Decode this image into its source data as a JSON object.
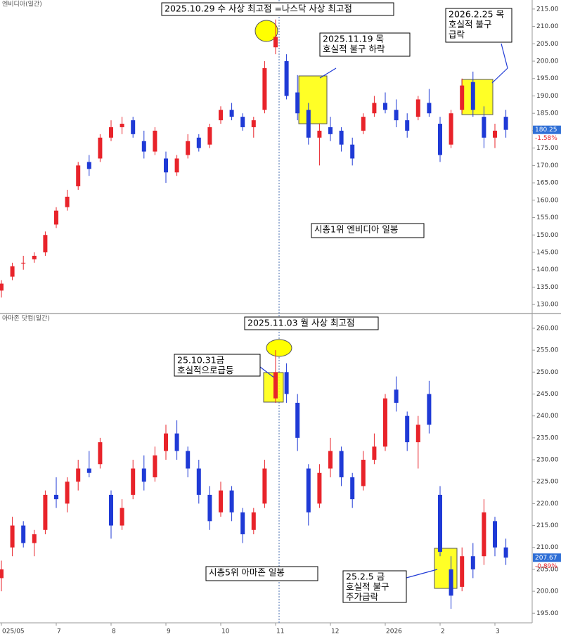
{
  "chart_data": [
    {
      "type": "candlestick",
      "title": "엔비디아(일간)",
      "up_color": "#e8232a",
      "down_color": "#1f3ad6",
      "categories": [
        null,
        null,
        null,
        null,
        null,
        null,
        null,
        null,
        null,
        null,
        null,
        null,
        null,
        null,
        null,
        null,
        null,
        null,
        null,
        null,
        null,
        null,
        null,
        null,
        null,
        null,
        null,
        null,
        null,
        null,
        null,
        null,
        null,
        null,
        null,
        null,
        null,
        null,
        null,
        null,
        null,
        null,
        null,
        null,
        null,
        null,
        null
      ],
      "open": [
        134,
        138,
        142,
        143,
        145,
        153,
        158,
        164,
        171,
        172,
        178,
        181,
        183,
        177,
        174,
        172,
        168,
        173,
        178,
        176,
        183,
        186,
        184,
        181,
        186,
        204,
        200,
        191,
        186,
        178,
        181,
        180,
        176,
        180,
        185,
        188,
        186,
        183,
        184,
        188,
        182,
        176,
        186,
        194,
        184,
        178,
        184
      ],
      "high": [
        137,
        142,
        144,
        145,
        151,
        158,
        163,
        171,
        173,
        179,
        183,
        184,
        184,
        180,
        181,
        174,
        173,
        179,
        179,
        182,
        187,
        188,
        185,
        184,
        200,
        212,
        202,
        196,
        188,
        182,
        184,
        181,
        178,
        185,
        190,
        191,
        189,
        185,
        190,
        192,
        184,
        186,
        195,
        197,
        187,
        182,
        186
      ],
      "low": [
        132,
        137,
        140,
        142,
        144,
        152,
        157,
        163,
        167,
        171,
        177,
        179,
        178,
        172,
        173,
        165,
        167,
        172,
        174,
        175,
        182,
        183,
        180,
        178,
        185,
        202,
        189,
        183,
        176,
        170,
        177,
        174,
        170,
        179,
        184,
        185,
        181,
        178,
        183,
        184,
        171,
        175,
        185,
        184,
        175,
        175,
        178
      ],
      "close": [
        136,
        141,
        142,
        144,
        150,
        157,
        161,
        170,
        169,
        178,
        181,
        182,
        179,
        174,
        180,
        168,
        172,
        177,
        175,
        181,
        186,
        184,
        181,
        183,
        198,
        207,
        190,
        185,
        178,
        180,
        179,
        176,
        172,
        184,
        188,
        186,
        183,
        180,
        189,
        185,
        173,
        185,
        193,
        186,
        178,
        180,
        180.25
      ],
      "change_label": "-1.58%",
      "ylim": [
        127.4,
        217.6
      ],
      "yticks": [
        {
          "value": 130,
          "label": "130.00"
        },
        {
          "value": 135,
          "label": "135.00"
        },
        {
          "value": 140,
          "label": "140.00"
        },
        {
          "value": 145,
          "label": "145.00"
        },
        {
          "value": 150,
          "label": "150.00"
        },
        {
          "value": 155,
          "label": "155.00"
        },
        {
          "value": 160,
          "label": "160.00"
        },
        {
          "value": 165,
          "label": "165.00"
        },
        {
          "value": 170,
          "label": "170.00"
        },
        {
          "value": 175,
          "label": "175.00"
        },
        {
          "value": 180,
          "label": "180.00"
        },
        {
          "value": 185,
          "label": "185.00"
        },
        {
          "value": 190,
          "label": "190.00"
        },
        {
          "value": 195,
          "label": "195.00"
        },
        {
          "value": 200,
          "label": "200.00"
        },
        {
          "value": 205,
          "label": "205.00"
        },
        {
          "value": 210,
          "label": "210.00"
        },
        {
          "value": 215,
          "label": "215.00"
        }
      ],
      "annotations": [
        {
          "lines": [
            "2025.10.29 수 사상 최고점 =나스닥 사상 최고점"
          ]
        },
        {
          "lines": [
            "2025.11.19 목",
            "호실적 불구 하락"
          ]
        },
        {
          "lines": [
            "2026.2.25 목",
            "호실적 불구",
            "급락"
          ]
        },
        {
          "lines": [
            "시총1위 엔비디아 일봉"
          ]
        }
      ]
    },
    {
      "type": "candlestick",
      "title": "아마존 닷컴(일간)",
      "up_color": "#e8232a",
      "down_color": "#1f3ad6",
      "categories": [
        "025/05",
        null,
        null,
        null,
        null,
        "7",
        null,
        null,
        null,
        null,
        "8",
        null,
        null,
        null,
        null,
        "9",
        null,
        null,
        null,
        null,
        "10",
        null,
        null,
        null,
        null,
        "11",
        null,
        null,
        null,
        null,
        "12",
        null,
        null,
        null,
        null,
        "2026",
        null,
        null,
        null,
        null,
        "2",
        null,
        null,
        null,
        null,
        "3",
        null
      ],
      "open": [
        203,
        210,
        215,
        211,
        214,
        222,
        220,
        225,
        228,
        229,
        222,
        215,
        222,
        228,
        226,
        232,
        236,
        232,
        228,
        222,
        218,
        223,
        218,
        214,
        220,
        244,
        250,
        243,
        228,
        220,
        228,
        232,
        226,
        224,
        230,
        233,
        246,
        240,
        234,
        245,
        222,
        205,
        201,
        208,
        208,
        216,
        210
      ],
      "high": [
        207,
        217,
        216,
        214,
        223,
        226,
        226,
        230,
        232,
        235,
        223,
        221,
        230,
        231,
        233,
        238,
        239,
        233,
        230,
        224,
        225,
        224,
        219,
        219,
        230,
        255,
        252,
        245,
        229,
        229,
        235,
        233,
        227,
        232,
        236,
        245,
        249,
        241,
        240,
        248,
        224,
        208,
        210,
        211,
        221,
        217,
        212
      ],
      "low": [
        200,
        208,
        210,
        208,
        213,
        219,
        218,
        223,
        226,
        228,
        212,
        214,
        221,
        223,
        225,
        230,
        230,
        226,
        220,
        214,
        217,
        216,
        211,
        213,
        219,
        243,
        243,
        232,
        215,
        219,
        226,
        224,
        219,
        223,
        229,
        232,
        241,
        232,
        228,
        236,
        208,
        196,
        200,
        203,
        206,
        208,
        206
      ],
      "close": [
        205,
        215,
        211,
        213,
        222,
        221,
        225,
        228,
        227,
        234,
        215,
        219,
        228,
        225,
        231,
        236,
        232,
        228,
        222,
        216,
        223,
        218,
        213,
        218,
        228,
        250,
        245,
        235,
        218,
        227,
        232,
        226,
        221,
        230,
        233,
        244,
        243,
        234,
        238,
        238,
        209,
        199,
        208,
        205,
        218,
        210,
        207.67
      ],
      "change_label": "-0.89%",
      "ylim": [
        192.8,
        263.2
      ],
      "yticks": [
        {
          "value": 195,
          "label": "195.00"
        },
        {
          "value": 200,
          "label": "200.00"
        },
        {
          "value": 205,
          "label": "205.00"
        },
        {
          "value": 210,
          "label": "210.00"
        },
        {
          "value": 215,
          "label": "215.00"
        },
        {
          "value": 220,
          "label": "220.00"
        },
        {
          "value": 225,
          "label": "225.00"
        },
        {
          "value": 230,
          "label": "230.00"
        },
        {
          "value": 235,
          "label": "235.00"
        },
        {
          "value": 240,
          "label": "240.00"
        },
        {
          "value": 245,
          "label": "245.00"
        },
        {
          "value": 250,
          "label": "250.00"
        },
        {
          "value": 255,
          "label": "255.00"
        },
        {
          "value": 260,
          "label": "260.00"
        }
      ],
      "annotations": [
        {
          "lines": [
            "2025.11.03 월 사상 최고점"
          ]
        },
        {
          "lines": [
            "25.10.31금",
            "호실적으로급등"
          ]
        },
        {
          "lines": [
            "시총5위 아마존 일봉"
          ]
        },
        {
          "lines": [
            "25.2.5 금",
            "호실적 불구",
            "주가급락"
          ]
        }
      ]
    }
  ]
}
